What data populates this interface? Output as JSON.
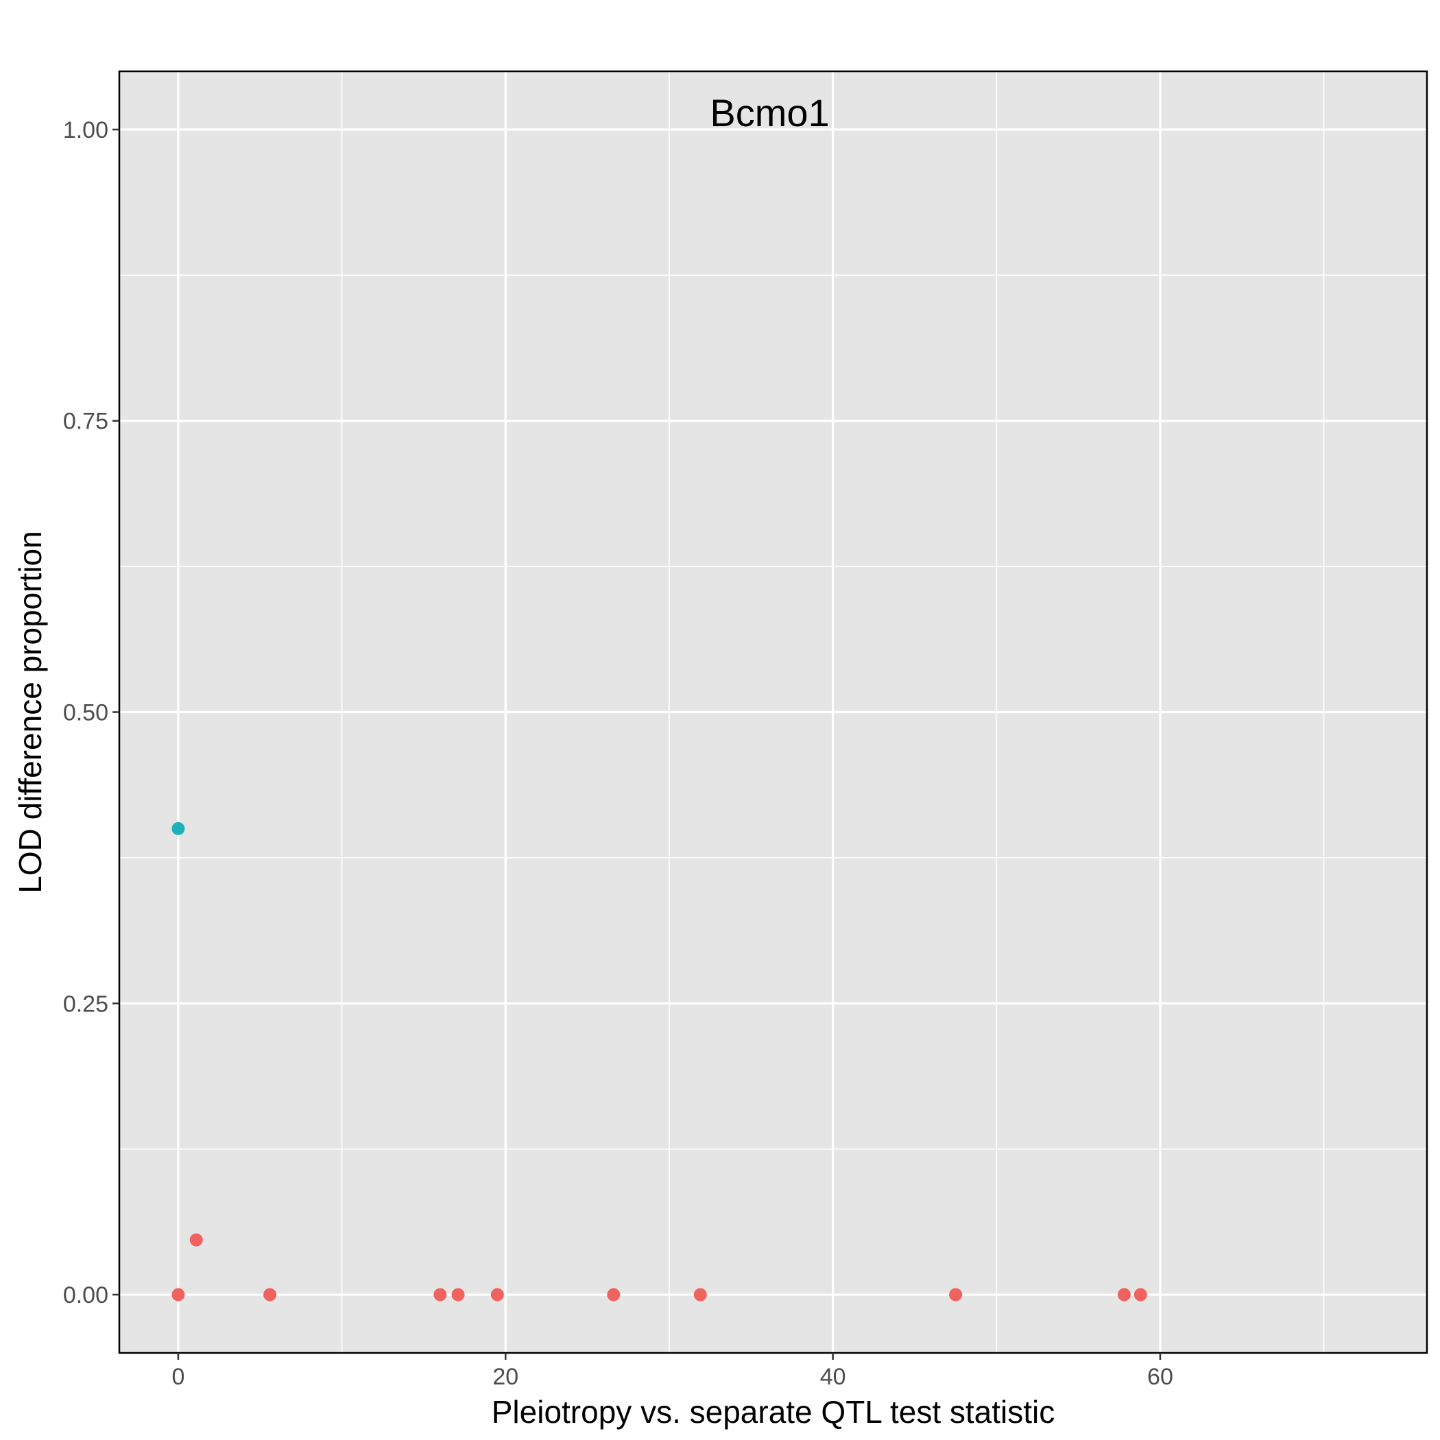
{
  "chart_data": {
    "type": "scatter",
    "title": "Bcmo1",
    "xlabel": "Pleiotropy vs. separate QTL test statistic",
    "ylabel": "LOD difference proportion",
    "xlim": [
      -3.6,
      76.3
    ],
    "ylim": [
      -0.05,
      1.05
    ],
    "x_ticks": [
      0,
      20,
      40,
      60
    ],
    "x_tick_labels": [
      "0",
      "20",
      "40",
      "60"
    ],
    "y_ticks": [
      0,
      0.25,
      0.5,
      0.75,
      1
    ],
    "y_tick_labels": [
      "0.00",
      "0.25",
      "0.50",
      "0.75",
      "1.00"
    ],
    "grid": true,
    "legend": "none",
    "colors": {
      "panel_background": "#e5e5e5",
      "grid": "#ffffff",
      "series_red": "#f0625e",
      "series_teal": "#1fb1b7"
    },
    "series": [
      {
        "color_key": "series_teal",
        "points": [
          {
            "x": 0.0,
            "y": 0.4
          }
        ]
      },
      {
        "color_key": "series_red",
        "points": [
          {
            "x": 0.0,
            "y": 0.0
          },
          {
            "x": 1.1,
            "y": 0.047
          },
          {
            "x": 5.6,
            "y": 0.0
          },
          {
            "x": 16.0,
            "y": 0.0
          },
          {
            "x": 17.1,
            "y": 0.0
          },
          {
            "x": 19.5,
            "y": 0.0
          },
          {
            "x": 26.6,
            "y": 0.0
          },
          {
            "x": 31.9,
            "y": 0.0
          },
          {
            "x": 47.5,
            "y": 0.0
          },
          {
            "x": 57.8,
            "y": 0.0
          },
          {
            "x": 58.8,
            "y": 0.0
          }
        ]
      }
    ]
  }
}
